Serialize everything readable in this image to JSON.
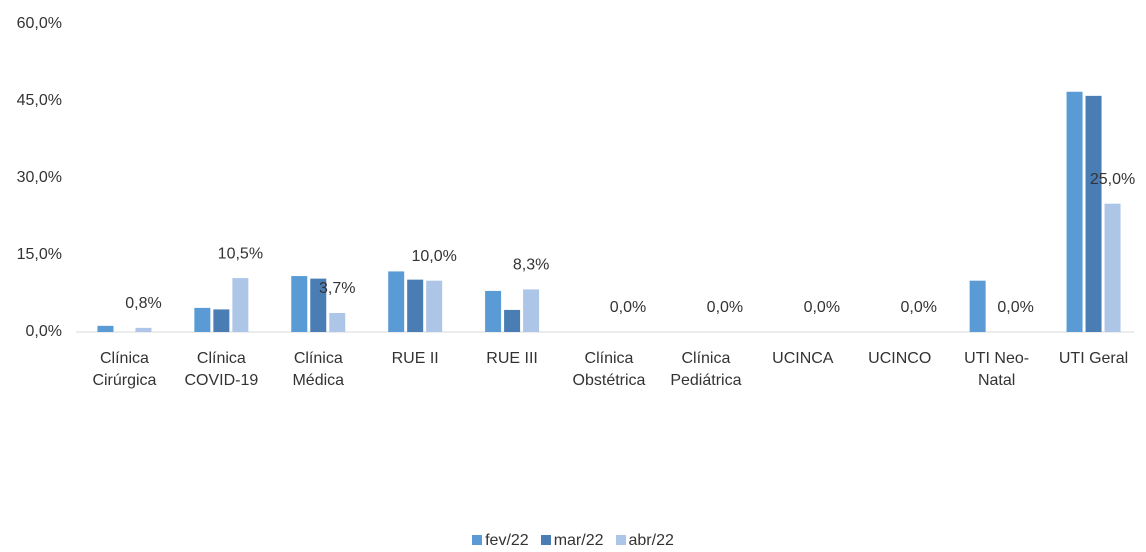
{
  "chart_data": {
    "type": "bar",
    "categories": [
      "Clínica Cirúrgica",
      "Clínica COVID-19",
      "Clínica Médica",
      "RUE II",
      "RUE III",
      "Clínica Obstétrica",
      "Clínica Pediátrica",
      "UCINCA",
      "UCINCO",
      "UTI Neo-Natal",
      "UTI Geral"
    ],
    "series": [
      {
        "name": "fev/22",
        "color": "#5b9bd5",
        "values": [
          1.2,
          4.7,
          10.9,
          11.8,
          8.0,
          0,
          0,
          0,
          0,
          10.0,
          46.8
        ]
      },
      {
        "name": "mar/22",
        "color": "#4a7db3",
        "values": [
          0,
          4.4,
          10.4,
          10.2,
          4.3,
          0,
          0,
          0,
          0,
          0,
          46.0
        ]
      },
      {
        "name": "abr/22",
        "color": "#adc6e8",
        "values": [
          0.8,
          10.5,
          3.7,
          10.0,
          8.3,
          0,
          0,
          0,
          0,
          0,
          25.0
        ],
        "value_labels": [
          "0,8%",
          "10,5%",
          "3,7%",
          "10,0%",
          "8,3%",
          "0,0%",
          "0,0%",
          "0,0%",
          "0,0%",
          "0,0%",
          "25,0%"
        ]
      }
    ],
    "ylim": [
      0,
      60
    ],
    "yticks": [
      {
        "value": 0,
        "label": "0,0%"
      },
      {
        "value": 15,
        "label": "15,0%"
      },
      {
        "value": 30,
        "label": "30,0%"
      },
      {
        "value": 45,
        "label": "45,0%"
      },
      {
        "value": 60,
        "label": "60,0%"
      }
    ],
    "legend": "bottom"
  }
}
